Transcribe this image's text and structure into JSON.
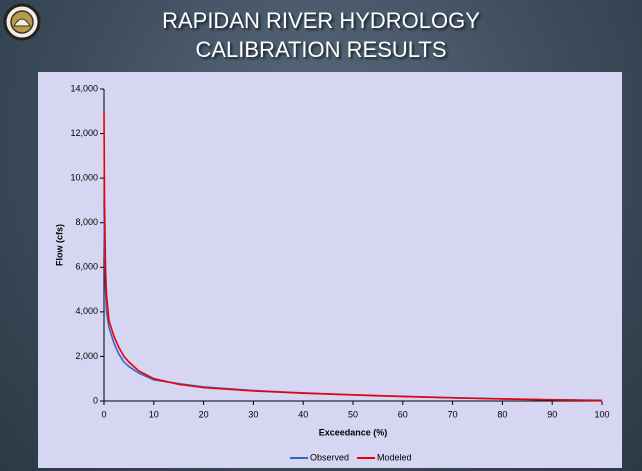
{
  "chart_data": {
    "type": "line",
    "title": "RAPIDAN RIVER HYDROLOGY CALIBRATION RESULTS",
    "xlabel": "Exceedance (%)",
    "ylabel": "Flow (cfs)",
    "x": [
      0,
      0.1,
      0.3,
      0.5,
      1,
      2,
      3,
      4,
      5,
      7,
      10,
      15,
      20,
      30,
      40,
      50,
      60,
      70,
      80,
      90,
      100
    ],
    "series": [
      {
        "name": "Observed",
        "color": "#3366cc",
        "values": [
          9000,
          7000,
          5000,
          4000,
          3300,
          2600,
          2100,
          1750,
          1550,
          1250,
          950,
          780,
          630,
          470,
          360,
          280,
          210,
          150,
          100,
          60,
          30
        ]
      },
      {
        "name": "Modeled",
        "color": "#ee0000",
        "values": [
          13000,
          9000,
          6000,
          4800,
          3600,
          2900,
          2400,
          2000,
          1750,
          1350,
          1000,
          750,
          600,
          450,
          350,
          270,
          200,
          140,
          90,
          50,
          20
        ]
      }
    ],
    "xlim": [
      0,
      100
    ],
    "xticks": [
      0,
      10,
      20,
      30,
      40,
      50,
      60,
      70,
      80,
      90,
      100
    ],
    "ylim": [
      0,
      14000
    ],
    "yticks": [
      0,
      {
        "value": 2000,
        "label": "2,000"
      },
      {
        "value": 4000,
        "label": "4,000"
      },
      {
        "value": 6000,
        "label": "6,000"
      },
      {
        "value": 8000,
        "label": "8,000"
      },
      {
        "value": 10000,
        "label": "10,000"
      },
      {
        "value": 12000,
        "label": "12,000"
      },
      {
        "value": 14000,
        "label": "14,000"
      }
    ],
    "grid": false,
    "legend": "bottom"
  }
}
